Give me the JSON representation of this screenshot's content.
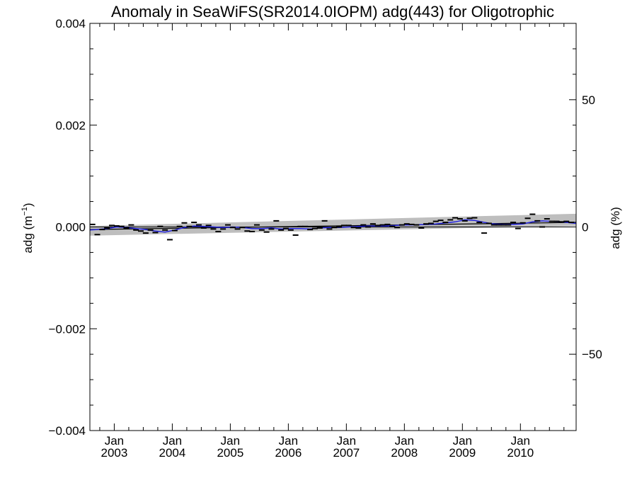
{
  "chart_data": {
    "type": "line",
    "title": "Anomaly in SeaWiFS(SR2014.0IOPM) adg(443) for Oligotrophic",
    "ylabel_base": "adg (m",
    "ylabel_exp": "−1",
    "ylabel_close": ")",
    "y2label": "adg (%)",
    "xlim": [
      2002.58,
      2010.96
    ],
    "ylim": [
      -0.004,
      0.004
    ],
    "y2lim": [
      -80,
      80
    ],
    "yticks": [
      {
        "value": 0.004,
        "label": "0.004"
      },
      {
        "value": 0.002,
        "label": "0.002"
      },
      {
        "value": 0.0,
        "label": "0.000"
      },
      {
        "value": -0.002,
        "label": "−0.002"
      },
      {
        "value": -0.004,
        "label": "−0.004"
      }
    ],
    "y2ticks": [
      {
        "value": 50,
        "label": "50"
      },
      {
        "value": 0,
        "label": "0"
      },
      {
        "value": -50,
        "label": "−50"
      }
    ],
    "xticks": [
      {
        "value": 2003.0,
        "month": "Jan",
        "year": "2003"
      },
      {
        "value": 2004.0,
        "month": "Jan",
        "year": "2004"
      },
      {
        "value": 2005.0,
        "month": "Jan",
        "year": "2005"
      },
      {
        "value": 2006.0,
        "month": "Jan",
        "year": "2006"
      },
      {
        "value": 2007.0,
        "month": "Jan",
        "year": "2007"
      },
      {
        "value": 2008.0,
        "month": "Jan",
        "year": "2008"
      },
      {
        "value": 2009.0,
        "month": "Jan",
        "year": "2009"
      },
      {
        "value": 2010.0,
        "month": "Jan",
        "year": "2010"
      }
    ],
    "confidence_band": {
      "x": [
        2002.58,
        2010.96
      ],
      "lower": [
        -0.00017,
        2e-05
      ],
      "upper": [
        2e-05,
        0.00026
      ]
    },
    "trend_line": {
      "x": [
        2002.58,
        2010.96
      ],
      "y": [
        -5e-05,
        9e-05
      ]
    },
    "zero_line": 0,
    "colors": {
      "band": "#bebebe",
      "smoothed": "#2222dd",
      "monthly": "#000000",
      "trend": "#000000"
    },
    "monthly_anomalies": {
      "x": [
        2002.625,
        2002.708,
        2002.792,
        2002.875,
        2002.958,
        2003.042,
        2003.125,
        2003.208,
        2003.292,
        2003.375,
        2003.458,
        2003.542,
        2003.625,
        2003.708,
        2003.792,
        2003.875,
        2003.958,
        2004.042,
        2004.125,
        2004.208,
        2004.292,
        2004.375,
        2004.458,
        2004.542,
        2004.625,
        2004.708,
        2004.792,
        2004.875,
        2004.958,
        2005.042,
        2005.125,
        2005.208,
        2005.292,
        2005.375,
        2005.458,
        2005.542,
        2005.625,
        2005.708,
        2005.792,
        2005.875,
        2005.958,
        2006.042,
        2006.125,
        2006.208,
        2006.292,
        2006.375,
        2006.458,
        2006.542,
        2006.625,
        2006.708,
        2006.792,
        2006.875,
        2006.958,
        2007.042,
        2007.125,
        2007.208,
        2007.292,
        2007.375,
        2007.458,
        2007.542,
        2007.625,
        2007.708,
        2007.792,
        2007.875,
        2007.958,
        2008.042,
        2008.125,
        2008.208,
        2008.292,
        2008.375,
        2008.458,
        2008.542,
        2008.625,
        2008.708,
        2008.792,
        2008.875,
        2008.958,
        2009.042,
        2009.125,
        2009.208,
        2009.292,
        2009.375,
        2009.458,
        2009.542,
        2009.625,
        2009.708,
        2009.792,
        2009.875,
        2009.958,
        2010.042,
        2010.125,
        2010.208,
        2010.292,
        2010.375,
        2010.458,
        2010.542,
        2010.625,
        2010.708,
        2010.792,
        2010.875
      ],
      "y": [
        5e-05,
        -0.00015,
        -5e-05,
        -2e-05,
        3e-05,
        2e-05,
        1e-05,
        -2e-05,
        4e-05,
        -6e-05,
        -8e-05,
        -0.00012,
        -6e-05,
        -0.00011,
        1e-05,
        -6e-05,
        -0.00025,
        -7e-05,
        1e-05,
        8e-05,
        1e-05,
        9e-05,
        4e-05,
        -2e-05,
        3e-05,
        -4e-05,
        -9e-05,
        -4e-05,
        4e-05,
        -1e-05,
        -4e-05,
        -1e-05,
        -8e-05,
        -9e-05,
        4e-05,
        -6e-05,
        -0.0001,
        -4e-05,
        0.00012,
        -6e-05,
        -3e-05,
        -6e-05,
        -0.00016,
        1e-05,
        1e-05,
        -5e-05,
        -3e-05,
        -2e-05,
        0.00012,
        -4e-05,
        -1e-05,
        0.0,
        3e-05,
        3e-05,
        -1e-05,
        -2e-05,
        4e-05,
        0.0,
        6e-05,
        3e-05,
        4e-05,
        5e-05,
        1e-05,
        -1e-05,
        4e-05,
        6e-05,
        5e-05,
        4e-05,
        -2e-05,
        6e-05,
        7e-05,
        0.00011,
        0.00013,
        9e-05,
        0.00014,
        0.00018,
        0.00016,
        0.00012,
        0.00017,
        0.00018,
        9e-05,
        -0.00012,
        7e-05,
        4e-05,
        4e-05,
        4e-05,
        4e-05,
        9e-05,
        -3e-05,
        8e-05,
        0.00017,
        0.00025,
        0.00012,
        0.0,
        0.00016,
        0.00011,
        0.00011,
        0.0001,
        0.00011,
        9e-05
      ]
    },
    "smoothed": {
      "x": [
        2002.58,
        2002.708,
        2002.875,
        2003.042,
        2003.208,
        2003.375,
        2003.542,
        2003.708,
        2003.875,
        2004.042,
        2004.208,
        2004.375,
        2004.542,
        2004.708,
        2004.875,
        2005.042,
        2005.208,
        2005.375,
        2005.542,
        2005.708,
        2005.875,
        2006.042,
        2006.208,
        2006.375,
        2006.542,
        2006.708,
        2006.875,
        2007.042,
        2007.208,
        2007.375,
        2007.542,
        2007.708,
        2007.875,
        2008.042,
        2008.208,
        2008.375,
        2008.542,
        2008.708,
        2008.875,
        2009.042,
        2009.208,
        2009.375,
        2009.542,
        2009.708,
        2009.875,
        2010.042,
        2010.208,
        2010.375,
        2010.542,
        2010.708,
        2010.875,
        2010.96
      ],
      "y": [
        -6e-05,
        -5e-05,
        -3e-05,
        0.0,
        -1e-05,
        -3e-05,
        -5e-05,
        -8e-05,
        -0.0001,
        -6e-05,
        -1e-05,
        2e-05,
        1e-05,
        0.0,
        -1e-05,
        0.0,
        -1e-05,
        -3e-05,
        -3e-05,
        -2e-05,
        -4e-05,
        -3e-05,
        -3e-05,
        -4e-05,
        -2e-05,
        -1e-05,
        -1e-05,
        0.0,
        1e-05,
        2e-05,
        2e-05,
        2e-05,
        3e-05,
        4e-05,
        4e-05,
        5e-05,
        6e-05,
        8e-05,
        0.0001,
        0.00014,
        0.00013,
        9e-05,
        6e-05,
        5e-05,
        5e-05,
        6e-05,
        0.0001,
        0.00012,
        0.00011,
        0.0001,
        8e-05,
        7e-05
      ]
    }
  }
}
